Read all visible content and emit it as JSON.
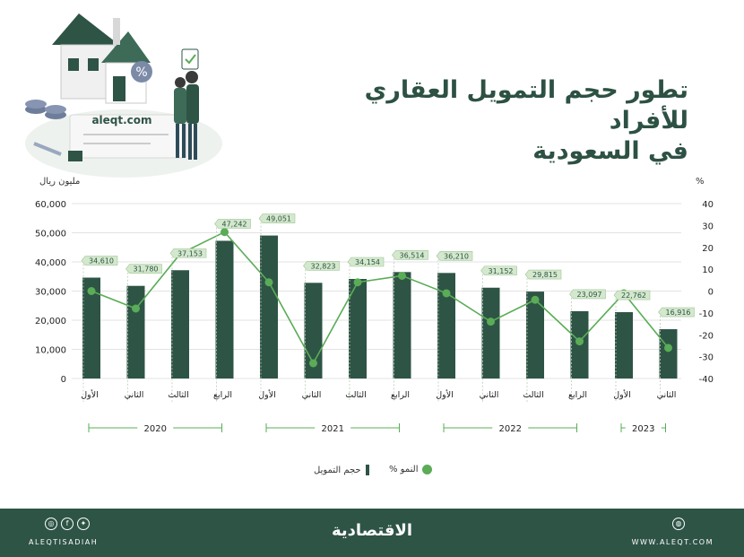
{
  "header": {
    "title_line1": "تطور حجم التمويل العقاري للأفراد",
    "title_line2": "في السعودية",
    "logo_text": "aleqt.com"
  },
  "axes": {
    "left_unit": "مليون ريال",
    "right_unit": "%"
  },
  "chart_data": {
    "type": "bar",
    "categories": [
      "الأول",
      "الثاني",
      "الثالث",
      "الرابع",
      "الأول",
      "الثاني",
      "الثالث",
      "الرابع",
      "الأول",
      "الثاني",
      "الثالث",
      "الرابع",
      "الأول",
      "الثاني"
    ],
    "years": [
      {
        "label": "2020",
        "from": 0,
        "to": 3
      },
      {
        "label": "2021",
        "from": 4,
        "to": 7
      },
      {
        "label": "2022",
        "from": 8,
        "to": 11
      },
      {
        "label": "2023",
        "from": 12,
        "to": 13
      }
    ],
    "bar_series": {
      "name": "حجم التمويل",
      "values": [
        34610,
        31780,
        37153,
        47242,
        49051,
        32823,
        34154,
        36514,
        36210,
        31152,
        29815,
        23097,
        22762,
        16916
      ],
      "labels": [
        "34,610",
        "31,780",
        "37,153",
        "47,242",
        "49,051",
        "32,823",
        "34,154",
        "36,514",
        "36,210",
        "31,152",
        "29,815",
        "23,097",
        "22,762",
        "16,916"
      ]
    },
    "line_series": {
      "name": "النمو %",
      "values": [
        0,
        -8,
        17,
        27,
        4,
        -33,
        4,
        7,
        -1,
        -14,
        -4,
        -23,
        -1,
        -26
      ]
    },
    "y_left": {
      "min": 0,
      "max": 60000,
      "ticks": [
        "0",
        "10,000",
        "20,000",
        "30,000",
        "40,000",
        "50,000",
        "60,000"
      ]
    },
    "y_right": {
      "min": -40,
      "max": 40,
      "ticks": [
        "-40",
        "-30",
        "-20",
        "-10",
        "0",
        "10",
        "20",
        "30",
        "40"
      ]
    },
    "colors": {
      "bar": "#2e5446",
      "line": "#5aac56",
      "label_bg": "#d4e8cd",
      "grid": "#e3e3e3"
    }
  },
  "legend": {
    "bar_label": "حجم التمويل",
    "line_label": "النمو %"
  },
  "footer": {
    "handle": "ALEQTISADIAH",
    "brand": "الاقتصادية",
    "website": "WWW.ALEQT.COM"
  }
}
